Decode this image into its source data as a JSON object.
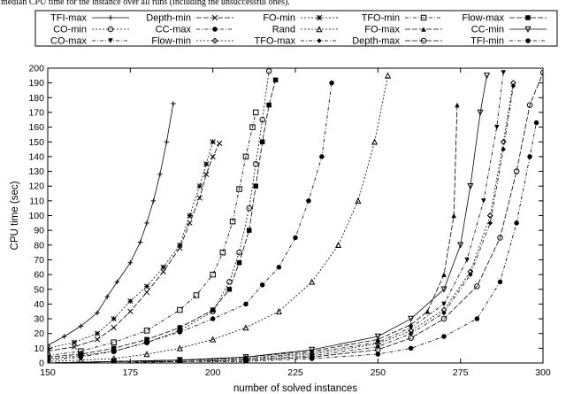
{
  "caption": "e median CPU time for the instance over all runs (including the unsuccessful ones).",
  "chart_data": {
    "type": "line",
    "title": "",
    "xlabel": "number of solved instances",
    "ylabel": "CPU time (sec)",
    "xlim": [
      150,
      300
    ],
    "ylim": [
      0,
      200
    ],
    "xticks": [
      150,
      175,
      200,
      225,
      250,
      275,
      300
    ],
    "yticks": [
      0,
      10,
      20,
      30,
      40,
      50,
      60,
      70,
      80,
      90,
      100,
      110,
      120,
      130,
      140,
      150,
      160,
      170,
      180,
      190,
      200
    ],
    "grid": false,
    "legend_position": "top",
    "series": [
      {
        "name": "TFI-max",
        "marker": "plus",
        "dash": "",
        "x": [
          150,
          155,
          160,
          165,
          168,
          171,
          175,
          178,
          180,
          182,
          184,
          186,
          188
        ],
        "y": [
          12,
          18,
          25,
          34,
          45,
          55,
          68,
          82,
          95,
          110,
          128,
          150,
          176
        ]
      },
      {
        "name": "Depth-min",
        "marker": "x",
        "dash": "6 2",
        "x": [
          150,
          158,
          165,
          170,
          175,
          180,
          185,
          190,
          193,
          196,
          198,
          200,
          202
        ],
        "y": [
          8,
          11,
          16,
          24,
          35,
          48,
          62,
          78,
          95,
          112,
          128,
          140,
          149
        ]
      },
      {
        "name": "FO-min",
        "marker": "star",
        "dash": "2 2",
        "x": [
          150,
          158,
          165,
          170,
          175,
          180,
          185,
          190,
          193,
          196,
          198,
          200
        ],
        "y": [
          10,
          14,
          20,
          30,
          42,
          52,
          65,
          80,
          100,
          120,
          135,
          150
        ]
      },
      {
        "name": "TFO-min",
        "marker": "square-open",
        "dash": "4 2 1 2",
        "x": [
          150,
          160,
          170,
          180,
          190,
          195,
          200,
          203,
          206,
          208,
          210,
          212,
          213
        ],
        "y": [
          5,
          8,
          14,
          22,
          36,
          46,
          60,
          75,
          96,
          118,
          140,
          160,
          170
        ]
      },
      {
        "name": "Flow-max",
        "marker": "square-filled",
        "dash": "6 2",
        "x": [
          150,
          160,
          170,
          180,
          190,
          200,
          205,
          208,
          211,
          213,
          215,
          217,
          219
        ],
        "y": [
          4,
          6,
          10,
          16,
          24,
          36,
          50,
          68,
          90,
          120,
          150,
          175,
          192
        ]
      },
      {
        "name": "CO-min",
        "marker": "circle-open",
        "dash": "2 2",
        "x": [
          150,
          160,
          170,
          180,
          190,
          200,
          205,
          208,
          211,
          213,
          215,
          217
        ],
        "y": [
          3,
          5,
          8,
          14,
          22,
          35,
          55,
          75,
          105,
          135,
          165,
          198
        ]
      },
      {
        "name": "CC-max",
        "marker": "circle-filled",
        "dash": "4 2 1 2",
        "x": [
          150,
          160,
          170,
          180,
          190,
          200,
          210,
          215,
          220,
          225,
          229,
          233,
          236
        ],
        "y": [
          2,
          4,
          8,
          14,
          21,
          30,
          40,
          53,
          65,
          85,
          110,
          140,
          190
        ]
      },
      {
        "name": "Rand",
        "marker": "triangle-open",
        "dash": "2 2",
        "x": [
          150,
          160,
          170,
          180,
          190,
          200,
          210,
          220,
          230,
          238,
          244,
          249,
          253
        ],
        "y": [
          1,
          2,
          3,
          6,
          10,
          16,
          24,
          35,
          55,
          80,
          110,
          150,
          195
        ]
      },
      {
        "name": "FO-max",
        "marker": "triangle-filled",
        "dash": "6 2",
        "x": [
          150,
          170,
          190,
          210,
          230,
          250,
          260,
          265,
          270,
          273,
          274
        ],
        "y": [
          0,
          1,
          2,
          4,
          8,
          16,
          26,
          35,
          60,
          100,
          175
        ]
      },
      {
        "name": "CC-min",
        "marker": "tri-down-open",
        "dash": "",
        "x": [
          150,
          170,
          190,
          210,
          230,
          250,
          260,
          270,
          275,
          278,
          281,
          283
        ],
        "y": [
          0,
          1,
          2,
          4,
          9,
          18,
          30,
          50,
          80,
          120,
          170,
          195
        ]
      },
      {
        "name": "CO-max",
        "marker": "tri-down-filled",
        "dash": "4 2 1 2",
        "x": [
          150,
          170,
          190,
          210,
          230,
          250,
          260,
          270,
          277,
          282,
          286,
          288
        ],
        "y": [
          0,
          1,
          2,
          3,
          7,
          14,
          24,
          40,
          70,
          110,
          160,
          197
        ]
      },
      {
        "name": "Flow-min",
        "marker": "diamond-open",
        "dash": "2 2",
        "x": [
          150,
          170,
          190,
          210,
          230,
          250,
          260,
          270,
          278,
          284,
          288,
          291
        ],
        "y": [
          0,
          1,
          2,
          3,
          6,
          13,
          22,
          36,
          62,
          100,
          150,
          190
        ]
      },
      {
        "name": "TFO-max",
        "marker": "diamond-filled",
        "dash": "4 2 1 2",
        "x": [
          150,
          170,
          190,
          210,
          230,
          250,
          260,
          270,
          278,
          284,
          288,
          291
        ],
        "y": [
          0,
          1,
          1,
          2,
          5,
          11,
          20,
          34,
          60,
          95,
          145,
          188
        ]
      },
      {
        "name": "Depth-max",
        "marker": "circle-open",
        "dash": "6 2",
        "x": [
          150,
          170,
          190,
          210,
          230,
          250,
          260,
          270,
          280,
          287,
          292,
          296,
          300
        ],
        "y": [
          0,
          1,
          1,
          2,
          4,
          9,
          17,
          30,
          52,
          85,
          130,
          175,
          197
        ]
      },
      {
        "name": "TFI-min",
        "marker": "circle-filled",
        "dash": "4 2 1 2",
        "x": [
          150,
          170,
          190,
          210,
          230,
          250,
          260,
          270,
          280,
          287,
          292,
          296,
          298
        ],
        "y": [
          0,
          0,
          1,
          1,
          3,
          6,
          10,
          18,
          30,
          55,
          95,
          140,
          163
        ]
      }
    ]
  }
}
